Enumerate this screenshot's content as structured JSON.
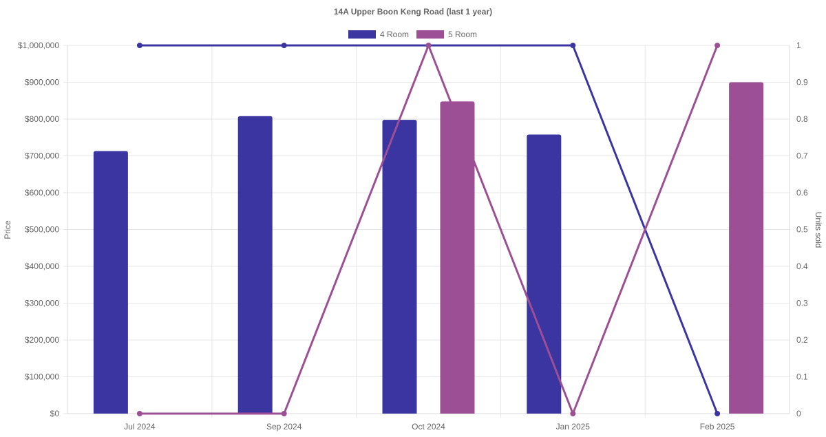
{
  "chart_data": {
    "type": "bar",
    "title": "14A Upper Boon Keng Road (last 1 year)",
    "categories": [
      "Jul 2024",
      "Sep 2024",
      "Oct 2024",
      "Jan 2025",
      "Feb 2025"
    ],
    "y_left": {
      "label": "Price",
      "range": [
        0,
        1000000
      ],
      "ticks": [
        "$0",
        "$100,000",
        "$200,000",
        "$300,000",
        "$400,000",
        "$500,000",
        "$600,000",
        "$700,000",
        "$800,000",
        "$900,000",
        "$1,000,000"
      ]
    },
    "y_right": {
      "label": "Units sold",
      "range": [
        0,
        1
      ],
      "ticks": [
        "0",
        "0.1",
        "0.2",
        "0.3",
        "0.4",
        "0.5",
        "0.6",
        "0.7",
        "0.8",
        "0.9",
        "1"
      ]
    },
    "legend": {
      "position": "top",
      "items": [
        {
          "label": "4 Room",
          "color": "#3a35a1"
        },
        {
          "label": "5 Room",
          "color": "#9d4f96"
        }
      ]
    },
    "grid": true,
    "series": [
      {
        "name": "4 Room",
        "kind": "bar",
        "axis": "left",
        "color": "#3a35a1",
        "values": [
          713000,
          808000,
          798000,
          758000,
          null
        ]
      },
      {
        "name": "5 Room",
        "kind": "bar",
        "axis": "left",
        "color": "#9d4f96",
        "values": [
          null,
          null,
          848000,
          null,
          900000
        ]
      },
      {
        "name": "4 Room",
        "kind": "line",
        "axis": "right",
        "color": "#3a35a1",
        "values": [
          1,
          1,
          1,
          1,
          0
        ]
      },
      {
        "name": "5 Room",
        "kind": "line",
        "axis": "right",
        "color": "#9d4f96",
        "values": [
          0,
          0,
          1,
          0,
          1
        ]
      }
    ]
  }
}
